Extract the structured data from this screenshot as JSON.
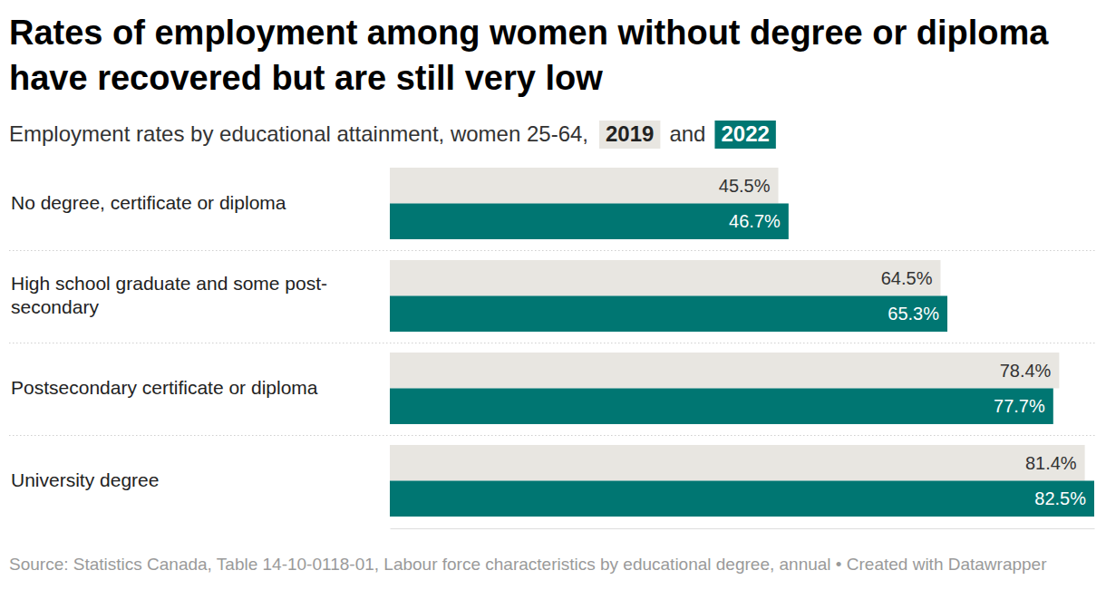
{
  "chart_data": {
    "type": "bar",
    "orientation": "horizontal",
    "title": "Rates of employment among women without degree or diploma have recovered but are still very low",
    "subtitle": "Employment rates by educational attainment, women 25-64,",
    "legend_joiner": "and",
    "legend": "top",
    "source": "Source: Statistics Canada, Table 14-10-0118-01, Labour force characteristics by educational degree, annual • Created with Datawrapper",
    "categories": [
      "No degree, certificate or diploma",
      "High school graduate and some post-secondary",
      "Postsecondary certificate or diploma",
      "University degree"
    ],
    "series": [
      {
        "name": "2019",
        "color": "#e8e6e1",
        "values": [
          45.5,
          64.5,
          78.4,
          81.4
        ],
        "value_labels": [
          "45.5%",
          "64.5%",
          "78.4%",
          "81.4%"
        ]
      },
      {
        "name": "2022",
        "color": "#007672",
        "values": [
          46.7,
          65.3,
          77.7,
          82.5
        ],
        "value_labels": [
          "46.7%",
          "65.3%",
          "77.7%",
          "82.5%"
        ]
      }
    ],
    "xlim": [
      0,
      82.5
    ],
    "xticks": [],
    "grid": false,
    "data_labels": true,
    "tick_labels": false
  }
}
